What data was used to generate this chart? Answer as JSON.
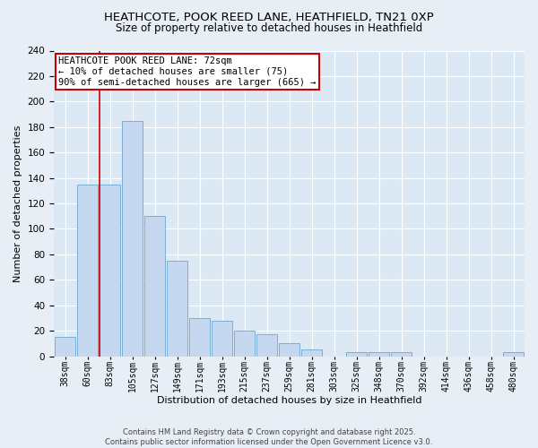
{
  "title_line1": "HEATHCOTE, POOK REED LANE, HEATHFIELD, TN21 0XP",
  "title_line2": "Size of property relative to detached houses in Heathfield",
  "xlabel": "Distribution of detached houses by size in Heathfield",
  "ylabel": "Number of detached properties",
  "categories": [
    "38sqm",
    "60sqm",
    "83sqm",
    "105sqm",
    "127sqm",
    "149sqm",
    "171sqm",
    "193sqm",
    "215sqm",
    "237sqm",
    "259sqm",
    "281sqm",
    "303sqm",
    "325sqm",
    "348sqm",
    "370sqm",
    "392sqm",
    "414sqm",
    "436sqm",
    "458sqm",
    "480sqm"
  ],
  "values": [
    15,
    135,
    135,
    185,
    110,
    75,
    30,
    28,
    20,
    17,
    10,
    5,
    0,
    3,
    3,
    3,
    0,
    0,
    0,
    0,
    3
  ],
  "bar_color": "#c5d8ef",
  "bar_edge_color": "#7bafd4",
  "bar_width": 0.95,
  "vline_color": "#cc0000",
  "annotation_text": "HEATHCOTE POOK REED LANE: 72sqm\n← 10% of detached houses are smaller (75)\n90% of semi-detached houses are larger (665) →",
  "annotation_box_color": "#cc0000",
  "ylim": [
    0,
    240
  ],
  "yticks": [
    0,
    20,
    40,
    60,
    80,
    100,
    120,
    140,
    160,
    180,
    200,
    220,
    240
  ],
  "bg_color": "#e8eef5",
  "plot_bg_color": "#dce8f3",
  "footer_text": "Contains HM Land Registry data © Crown copyright and database right 2025.\nContains public sector information licensed under the Open Government Licence v3.0.",
  "title_fontsize": 9.5,
  "subtitle_fontsize": 8.5,
  "axis_label_fontsize": 8,
  "tick_fontsize": 7,
  "annotation_fontsize": 7.5,
  "footer_fontsize": 6
}
